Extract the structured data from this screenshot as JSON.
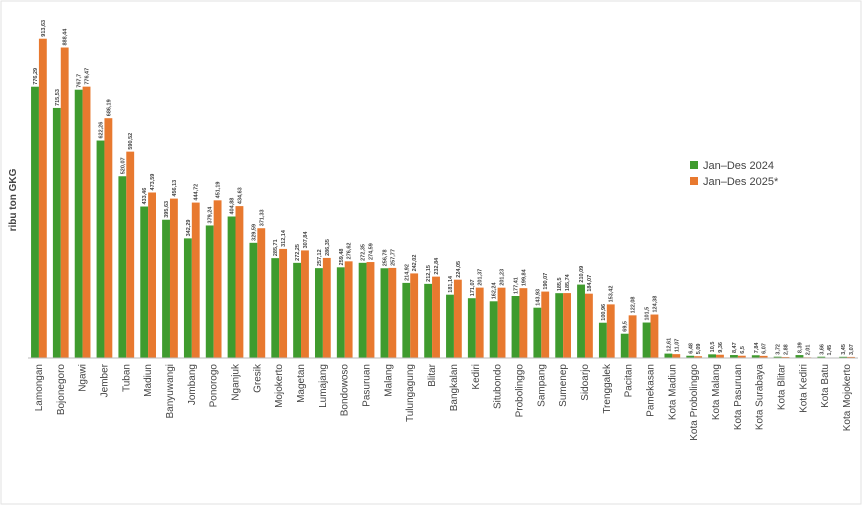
{
  "chart_data": {
    "type": "bar",
    "y_label": "ribu ton GKG",
    "categories": [
      "Lamongan",
      "Bojonegoro",
      "Ngawi",
      "Jember",
      "Tuban",
      "Madiun",
      "Banyuwangi",
      "Jombang",
      "Ponorogo",
      "Nganjuk",
      "Gresik",
      "Mojokerto",
      "Magetan",
      "Lumajang",
      "Bondowoso",
      "Pasuruan",
      "Malang",
      "Tulungagung",
      "Blitar",
      "Bangkalan",
      "Kediri",
      "Situbondo",
      "Probolinggo",
      "Sampang",
      "Sumenep",
      "Sidoarjo",
      "Trenggalek",
      "Pacitan",
      "Pamekasan",
      "Kota Madiun",
      "Kota Probolinggo",
      "Kota Malang",
      "Kota Pasuruan",
      "Kota Surabaya",
      "Kota Blitar",
      "Kota Kediri",
      "Kota Batu",
      "Kota Mojokerto"
    ],
    "series": [
      {
        "name": "Jan–Des 2024",
        "color": "#3f9b2e",
        "values": [
          776.29,
          715.53,
          767.7,
          622.26,
          520.07,
          433.46,
          395.63,
          342.29,
          379.24,
          404.88,
          329.59,
          285.71,
          272.25,
          257.12,
          259.48,
          272.35,
          256.78,
          214.92,
          212.15,
          181.14,
          171.07,
          162.24,
          177.41,
          143.93,
          185.5,
          210.09,
          100.96,
          69.5,
          101.5,
          12.61,
          6.48,
          10.5,
          8.47,
          7.84,
          3.72,
          8.39,
          3.66,
          3.45
        ],
        "value_labels": [
          "776,29",
          "715,53",
          "767,7",
          "622,26",
          "520,07",
          "433,46",
          "395,63",
          "342,29",
          "379,24",
          "404,88",
          "329,59",
          "285,71",
          "272,25",
          "257,12",
          "259,48",
          "272,35",
          "256,78",
          "214,92",
          "212,15",
          "181,14",
          "171,07",
          "162,24",
          "177,41",
          "143,93",
          "185,5",
          "210,09",
          "100,96",
          "69,5",
          "101,5",
          "12,61",
          "6,48",
          "10,5",
          "8,47",
          "7,84",
          "3,72",
          "8,39",
          "3,66",
          "3,45"
        ]
      },
      {
        "name": "Jan–Des 2025*",
        "color": "#e8792f",
        "values": [
          913.63,
          888.44,
          776.47,
          686.19,
          590.52,
          473.59,
          456.13,
          444.72,
          451.19,
          434.63,
          371.33,
          312.14,
          307.84,
          286.35,
          276.62,
          274.59,
          257.77,
          242.02,
          232.84,
          224.05,
          201.37,
          201.23,
          199.84,
          190.07,
          185.74,
          184.07,
          153.42,
          122.08,
          124.38,
          11.07,
          5.09,
          9.36,
          6.5,
          6.07,
          2.88,
          2.01,
          1.45,
          3.07
        ],
        "value_labels": [
          "913,63",
          "888,44",
          "776,47",
          "686,19",
          "590,52",
          "473,59",
          "456,13",
          "444,72",
          "451,19",
          "434,63",
          "371,33",
          "312,14",
          "307,84",
          "286,35",
          "276,62",
          "274,59",
          "257,77",
          "242,02",
          "232,84",
          "224,05",
          "201,37",
          "201,23",
          "199,84",
          "190,07",
          "185,74",
          "184,07",
          "153,42",
          "122,08",
          "124,38",
          "11,07",
          "5,09",
          "9,36",
          "6,5",
          "6,07",
          "2,88",
          "2,01",
          "1,45",
          "3,07"
        ]
      }
    ],
    "ylim": [
      0,
      950
    ],
    "legend": "right"
  }
}
